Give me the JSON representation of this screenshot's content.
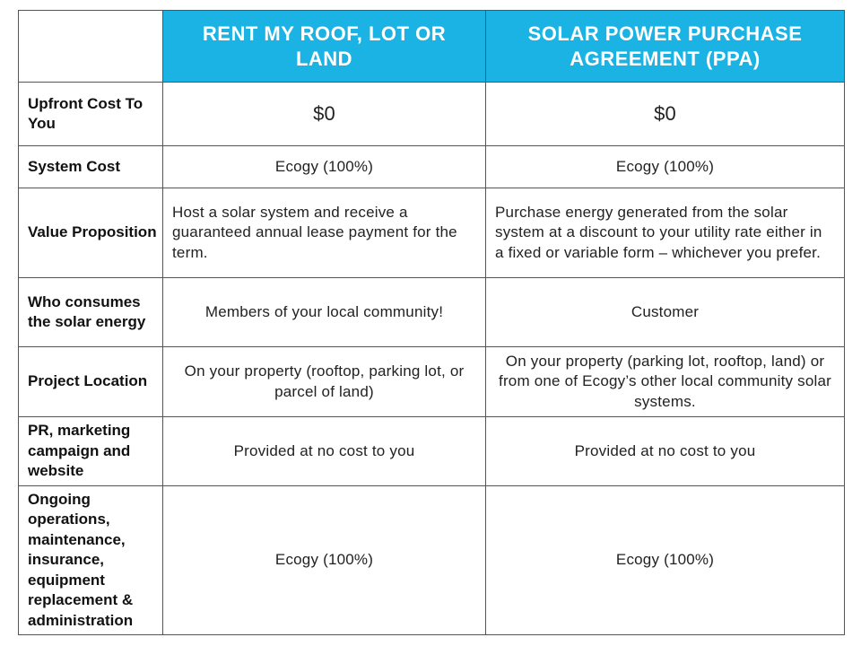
{
  "table": {
    "headers": {
      "rent": "RENT MY ROOF, LOT OR LAND",
      "ppa": "SOLAR POWER PURCHASE AGREEMENT (PPA)"
    },
    "rows": [
      {
        "label": "Upfront Cost To You",
        "rent": "$0",
        "ppa": "$0"
      },
      {
        "label": "System Cost",
        "rent": "Ecogy (100%)",
        "ppa": "Ecogy (100%)"
      },
      {
        "label": "Value Proposition",
        "rent": "Host a solar system and receive a guaranteed annual lease payment for the term.",
        "ppa": "Purchase energy generated from the solar system at a discount to your utility rate either in a fixed or variable form – whichever you prefer."
      },
      {
        "label": "Who consumes the solar energy",
        "rent": "Members of your local community!",
        "ppa": "Customer"
      },
      {
        "label": "Project Location",
        "rent": "On your property (rooftop, parking lot, or parcel of land)",
        "ppa": "On your property (parking lot, rooftop, land) or from one of Ecogy’s other local community solar systems."
      },
      {
        "label": "PR, marketing campaign and website",
        "rent": "Provided at no cost to you",
        "ppa": "Provided at no cost to you"
      },
      {
        "label": "Ongoing operations, maintenance, insurance, equipment replacement & administration",
        "rent": "Ecogy (100%)",
        "ppa": "Ecogy (100%)"
      }
    ]
  },
  "colors": {
    "header_bg": "#1ab3e3",
    "header_text": "#ffffff",
    "border": "#555555"
  }
}
